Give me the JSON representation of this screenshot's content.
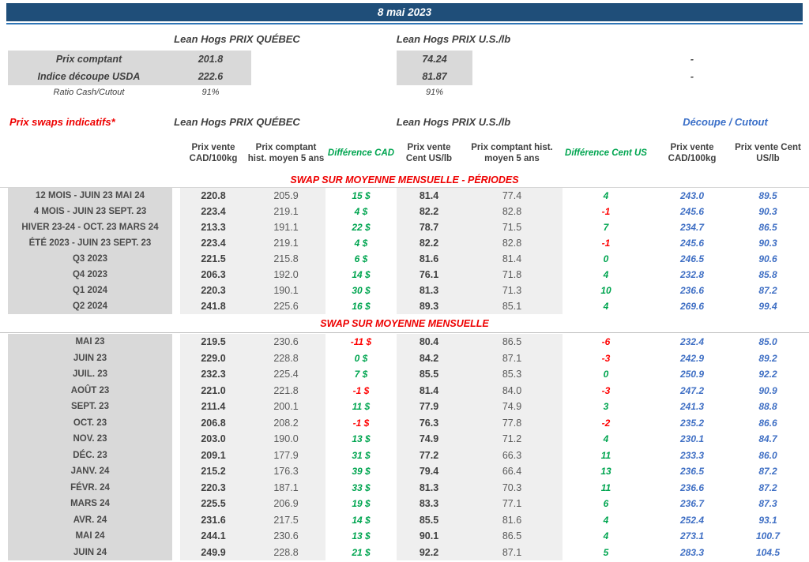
{
  "header": {
    "date": "8 mai 2023"
  },
  "summary": {
    "quebec_header": "Lean Hogs PRIX QUÉBEC",
    "us_header": "Lean Hogs PRIX U.S./lb",
    "rows": [
      {
        "label": "Prix comptant",
        "quebec": "201.8",
        "us": "74.24",
        "cutout": "-"
      },
      {
        "label": "Indice découpe USDA",
        "quebec": "222.6",
        "us": "81.87",
        "cutout": "-"
      },
      {
        "label": "Ratio Cash/Cutout",
        "quebec": "91%",
        "us": "91%",
        "cutout": ""
      }
    ]
  },
  "swaps": {
    "title": "Prix swaps indicatifs*",
    "quebec_header": "Lean Hogs PRIX QUÉBEC",
    "us_header": "Lean Hogs PRIX U.S./lb",
    "cutout_header": "Découpe / Cutout",
    "columns": [
      "Prix vente CAD/100kg",
      "Prix comptant hist. moyen 5 ans",
      "Différence CAD",
      "Prix vente Cent US/lb",
      "Prix comptant hist. moyen 5 ans",
      "Différence Cent US",
      "Prix vente CAD/100kg",
      "Prix vente Cent US/lb"
    ],
    "sections": [
      {
        "header": "SWAP SUR MOYENNE MENSUELLE - PÉRIODES",
        "rows": [
          {
            "label": "12 MOIS - JUIN 23 MAI 24",
            "cad_sell": "220.8",
            "cad_hist": "205.9",
            "diff_cad": "15 $",
            "us_sell": "81.4",
            "us_hist": "77.4",
            "diff_us": "4",
            "cutout_cad": "243.0",
            "cutout_us": "89.5"
          },
          {
            "label": "4 MOIS - JUIN 23 SEPT. 23",
            "cad_sell": "223.4",
            "cad_hist": "219.1",
            "diff_cad": "4 $",
            "us_sell": "82.2",
            "us_hist": "82.8",
            "diff_us": "-1",
            "cutout_cad": "245.6",
            "cutout_us": "90.3"
          },
          {
            "label": "HIVER 23-24 -  OCT. 23 MARS 24",
            "cad_sell": "213.3",
            "cad_hist": "191.1",
            "diff_cad": "22 $",
            "us_sell": "78.7",
            "us_hist": "71.5",
            "diff_us": "7",
            "cutout_cad": "234.7",
            "cutout_us": "86.5"
          },
          {
            "label": "ÉTÉ 2023 - JUIN 23 SEPT. 23",
            "cad_sell": "223.4",
            "cad_hist": "219.1",
            "diff_cad": "4 $",
            "us_sell": "82.2",
            "us_hist": "82.8",
            "diff_us": "-1",
            "cutout_cad": "245.6",
            "cutout_us": "90.3"
          },
          {
            "label": "Q3 2023",
            "cad_sell": "221.5",
            "cad_hist": "215.8",
            "diff_cad": "6 $",
            "us_sell": "81.6",
            "us_hist": "81.4",
            "diff_us": "0",
            "cutout_cad": "246.5",
            "cutout_us": "90.6"
          },
          {
            "label": "Q4 2023",
            "cad_sell": "206.3",
            "cad_hist": "192.0",
            "diff_cad": "14 $",
            "us_sell": "76.1",
            "us_hist": "71.8",
            "diff_us": "4",
            "cutout_cad": "232.8",
            "cutout_us": "85.8"
          },
          {
            "label": "Q1 2024",
            "cad_sell": "220.3",
            "cad_hist": "190.1",
            "diff_cad": "30 $",
            "us_sell": "81.3",
            "us_hist": "71.3",
            "diff_us": "10",
            "cutout_cad": "236.6",
            "cutout_us": "87.2"
          },
          {
            "label": "Q2 2024",
            "cad_sell": "241.8",
            "cad_hist": "225.6",
            "diff_cad": "16 $",
            "us_sell": "89.3",
            "us_hist": "85.1",
            "diff_us": "4",
            "cutout_cad": "269.6",
            "cutout_us": "99.4"
          }
        ]
      },
      {
        "header": "SWAP SUR MOYENNE MENSUELLE",
        "rows": [
          {
            "label": "MAI 23",
            "cad_sell": "219.5",
            "cad_hist": "230.6",
            "diff_cad": "-11 $",
            "us_sell": "80.4",
            "us_hist": "86.5",
            "diff_us": "-6",
            "cutout_cad": "232.4",
            "cutout_us": "85.0"
          },
          {
            "label": "JUIN 23",
            "cad_sell": "229.0",
            "cad_hist": "228.8",
            "diff_cad": "0 $",
            "us_sell": "84.2",
            "us_hist": "87.1",
            "diff_us": "-3",
            "cutout_cad": "242.9",
            "cutout_us": "89.2"
          },
          {
            "label": "JUIL. 23",
            "cad_sell": "232.3",
            "cad_hist": "225.4",
            "diff_cad": "7 $",
            "us_sell": "85.5",
            "us_hist": "85.3",
            "diff_us": "0",
            "cutout_cad": "250.9",
            "cutout_us": "92.2"
          },
          {
            "label": "AOÛT 23",
            "cad_sell": "221.0",
            "cad_hist": "221.8",
            "diff_cad": "-1 $",
            "us_sell": "81.4",
            "us_hist": "84.0",
            "diff_us": "-3",
            "cutout_cad": "247.2",
            "cutout_us": "90.9"
          },
          {
            "label": "SEPT. 23",
            "cad_sell": "211.4",
            "cad_hist": "200.1",
            "diff_cad": "11 $",
            "us_sell": "77.9",
            "us_hist": "74.9",
            "diff_us": "3",
            "cutout_cad": "241.3",
            "cutout_us": "88.8"
          },
          {
            "label": "OCT. 23",
            "cad_sell": "206.8",
            "cad_hist": "208.2",
            "diff_cad": "-1 $",
            "us_sell": "76.3",
            "us_hist": "77.8",
            "diff_us": "-2",
            "cutout_cad": "235.2",
            "cutout_us": "86.6"
          },
          {
            "label": "NOV. 23",
            "cad_sell": "203.0",
            "cad_hist": "190.0",
            "diff_cad": "13 $",
            "us_sell": "74.9",
            "us_hist": "71.2",
            "diff_us": "4",
            "cutout_cad": "230.1",
            "cutout_us": "84.7"
          },
          {
            "label": "DÉC. 23",
            "cad_sell": "209.1",
            "cad_hist": "177.9",
            "diff_cad": "31 $",
            "us_sell": "77.2",
            "us_hist": "66.3",
            "diff_us": "11",
            "cutout_cad": "233.3",
            "cutout_us": "86.0"
          },
          {
            "label": "JANV. 24",
            "cad_sell": "215.2",
            "cad_hist": "176.3",
            "diff_cad": "39 $",
            "us_sell": "79.4",
            "us_hist": "66.4",
            "diff_us": "13",
            "cutout_cad": "236.5",
            "cutout_us": "87.2"
          },
          {
            "label": "FÉVR. 24",
            "cad_sell": "220.3",
            "cad_hist": "187.1",
            "diff_cad": "33 $",
            "us_sell": "81.3",
            "us_hist": "70.3",
            "diff_us": "11",
            "cutout_cad": "236.6",
            "cutout_us": "87.2"
          },
          {
            "label": "MARS 24",
            "cad_sell": "225.5",
            "cad_hist": "206.9",
            "diff_cad": "19 $",
            "us_sell": "83.3",
            "us_hist": "77.1",
            "diff_us": "6",
            "cutout_cad": "236.7",
            "cutout_us": "87.3"
          },
          {
            "label": "AVR. 24",
            "cad_sell": "231.6",
            "cad_hist": "217.5",
            "diff_cad": "14 $",
            "us_sell": "85.5",
            "us_hist": "81.6",
            "diff_us": "4",
            "cutout_cad": "252.4",
            "cutout_us": "93.1"
          },
          {
            "label": "MAI 24",
            "cad_sell": "244.1",
            "cad_hist": "230.6",
            "diff_cad": "13 $",
            "us_sell": "90.1",
            "us_hist": "86.5",
            "diff_us": "4",
            "cutout_cad": "273.1",
            "cutout_us": "100.7"
          },
          {
            "label": "JUIN 24",
            "cad_sell": "249.9",
            "cad_hist": "228.8",
            "diff_cad": "21 $",
            "us_sell": "92.2",
            "us_hist": "87.1",
            "diff_us": "5",
            "cutout_cad": "283.3",
            "cutout_us": "104.5"
          }
        ]
      }
    ]
  },
  "colors": {
    "title_bar": "#1F4E79",
    "title_underline": "#2E75B6",
    "label_gray": "#D9D9D9",
    "value_gray": "#EFEFEF",
    "text_dark": "#404040",
    "red": "#EE0000",
    "green": "#00A550",
    "blue": "#3F6FC4"
  }
}
